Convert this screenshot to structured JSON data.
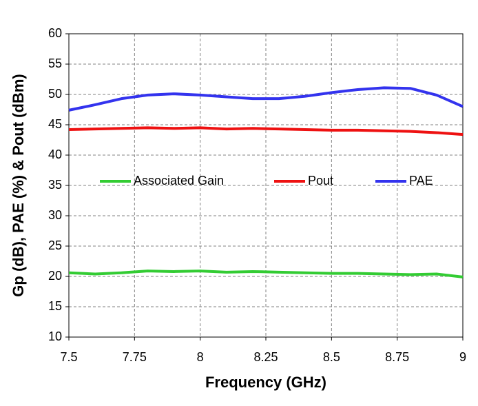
{
  "chart_data": {
    "type": "line",
    "x_label": "Frequency (GHz)",
    "y_label": "Gp (dB), PAE (%) & Pout (dBm)",
    "x": [
      7.5,
      7.6,
      7.7,
      7.8,
      7.9,
      8.0,
      8.1,
      8.2,
      8.3,
      8.4,
      8.5,
      8.6,
      8.7,
      8.8,
      8.9,
      9.0
    ],
    "series": [
      {
        "name": "Associated Gain",
        "color": "#33cc33",
        "values": [
          20.6,
          20.4,
          20.6,
          20.9,
          20.8,
          20.9,
          20.7,
          20.8,
          20.7,
          20.6,
          20.5,
          20.5,
          20.4,
          20.3,
          20.4,
          19.9
        ]
      },
      {
        "name": "Pout",
        "color": "#ee1111",
        "values": [
          44.2,
          44.3,
          44.4,
          44.5,
          44.4,
          44.5,
          44.3,
          44.4,
          44.3,
          44.2,
          44.1,
          44.1,
          44.0,
          43.9,
          43.7,
          43.4
        ]
      },
      {
        "name": "PAE",
        "color": "#3333ee",
        "values": [
          47.4,
          48.3,
          49.3,
          49.9,
          50.1,
          49.9,
          49.6,
          49.3,
          49.3,
          49.7,
          50.3,
          50.8,
          51.1,
          51.0,
          49.9,
          48.0
        ]
      }
    ],
    "xlim": [
      7.5,
      9
    ],
    "xticks": [
      7.5,
      7.75,
      8,
      8.25,
      8.5,
      8.75,
      9
    ],
    "ylim": [
      10,
      60
    ],
    "yticks": [
      10,
      15,
      20,
      25,
      30,
      35,
      40,
      45,
      50,
      55,
      60
    ],
    "grid": true
  }
}
